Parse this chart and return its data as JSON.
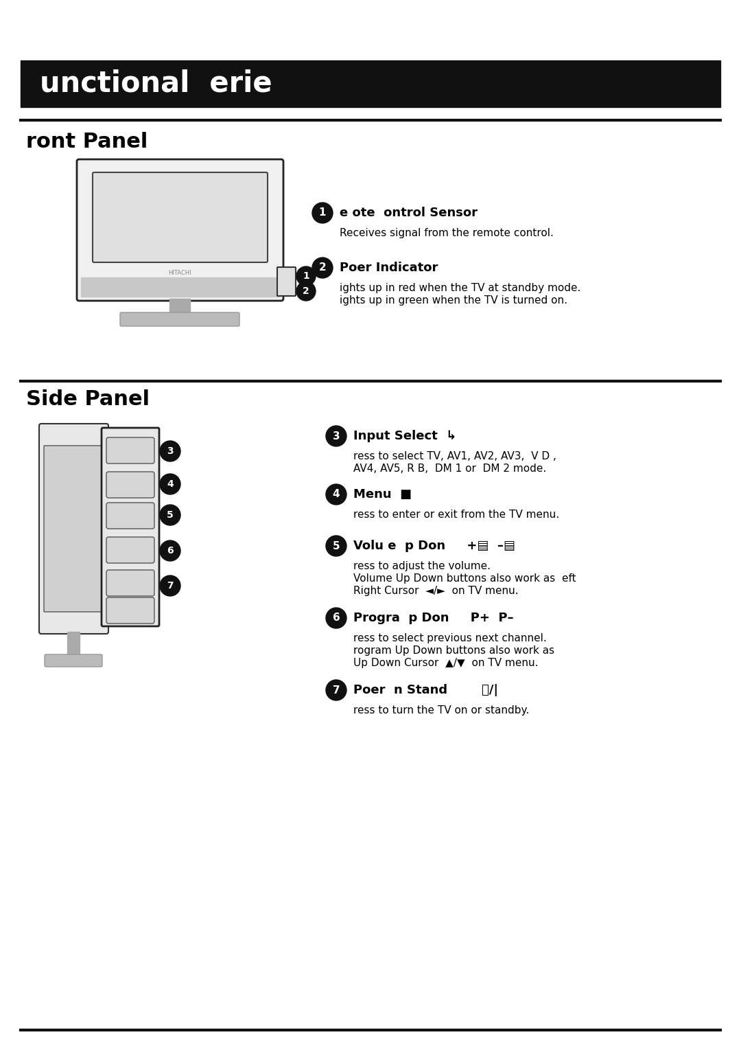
{
  "title_bar_text": "unctional  erie",
  "title_bar_color": "#111111",
  "title_bar_text_color": "#ffffff",
  "front_panel_title": "ront Panel",
  "side_panel_title": "Side Panel",
  "item1_title": "e ote  ontrol Sensor",
  "item1_desc": "Receives signal from the remote control.",
  "item2_title": "Poer Indicator",
  "item2_desc1": "ights up in red when the TV at standby mode.",
  "item2_desc2": "ights up in green when the TV is turned on.",
  "item3_title": "Input Select",
  "item3_desc1": "ress to select TV, AV1, AV2, AV3,  V D ,",
  "item3_desc2": "AV4, AV5, R B,  DM 1 or  DM 2 mode.",
  "item4_title": "Menu",
  "item4_desc": "ress to enter or exit from the TV menu.",
  "item5_title": "Volu e  p Don",
  "item5_icon": "+▤  –▤",
  "item5_desc1": "ress to adjust the volume.",
  "item5_desc2": "Volume Up Down buttons also work as  eft",
  "item5_desc3": "Right Cursor  ◄/►  on TV menu.",
  "item6_title": "Progra  p Don",
  "item6_icon": "P+  P–",
  "item6_desc1": "ress to select previous next channel.",
  "item6_desc2": "rogram Up Down buttons also work as",
  "item6_desc3": "Up Down Cursor  ▲/▼  on TV menu.",
  "item7_title": "Poer  n Stand",
  "item7_icon": "⏻/|",
  "item7_desc": "ress to turn the TV on or standby.",
  "bg_color": "#ffffff",
  "text_color": "#000000"
}
